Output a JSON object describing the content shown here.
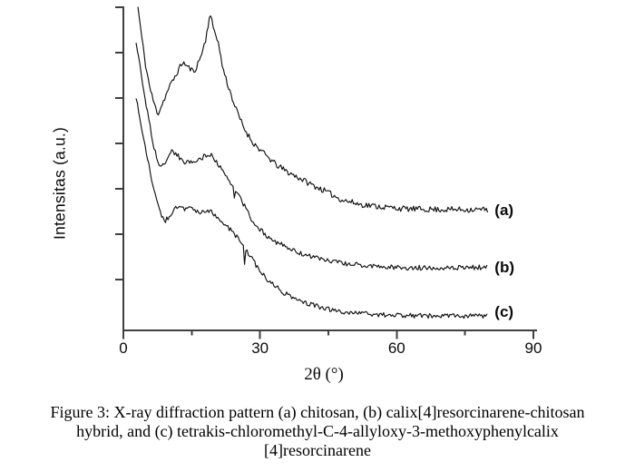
{
  "figure": {
    "y_axis_label": "Intensitas (a.u.)",
    "x_axis_label": "2θ (°)",
    "caption_lines": [
      "Figure 3: X-ray diffraction pattern (a) chitosan, (b) calix[4]resorcinarene-chitosan",
      "hybrid, and (c) tetrakis-chloromethyl-C-4-allyloxy-3-methoxyphenylcalix",
      "[4]resorcinarene"
    ]
  },
  "chart_data": {
    "type": "line",
    "title": "",
    "xlabel": "2θ (°)",
    "ylabel": "Intensitas (a.u.)",
    "x_axis": {
      "range": [
        0,
        90
      ],
      "major_ticks": [
        0,
        30,
        60,
        90
      ],
      "minor_ticks": [
        15,
        45,
        75
      ],
      "tick_labels": [
        "0",
        "30",
        "60",
        "90"
      ]
    },
    "y_axis": {
      "units": "arbitrary units (a.u.)",
      "tick_count": 7,
      "tick_labels": []
    },
    "curve_color": "#101010",
    "axis_color": "#3f3f3f",
    "series": [
      {
        "key": "a",
        "label": "(a)",
        "name": "chitosan",
        "label_deg": 81.5,
        "label_u": 37.1,
        "noise_u": 0.9,
        "points": [
          [
            3.2,
            100
          ],
          [
            4,
            91
          ],
          [
            5,
            81
          ],
          [
            6,
            74
          ],
          [
            7,
            69
          ],
          [
            7.6,
            67
          ],
          [
            8.5,
            70
          ],
          [
            10,
            75
          ],
          [
            11.5,
            79
          ],
          [
            13,
            83
          ],
          [
            14.2,
            81.5
          ],
          [
            15.5,
            80
          ],
          [
            16.8,
            84
          ],
          [
            18,
            89.5
          ],
          [
            19,
            98
          ],
          [
            19.7,
            94
          ],
          [
            20.7,
            90
          ],
          [
            21.7,
            82
          ],
          [
            22.7,
            77
          ],
          [
            24.7,
            68.5
          ],
          [
            26.5,
            62.5
          ],
          [
            28.5,
            58
          ],
          [
            31,
            54.5
          ],
          [
            33.7,
            51.1
          ],
          [
            36.2,
            48.9
          ],
          [
            39,
            46.9
          ],
          [
            41.2,
            45.2
          ],
          [
            44,
            43.3
          ],
          [
            48,
            40.4
          ],
          [
            52,
            39
          ],
          [
            57,
            38.2
          ],
          [
            62,
            37.6
          ],
          [
            70,
            37.4
          ],
          [
            80,
            37.4
          ]
        ]
      },
      {
        "key": "b",
        "label": "(b)",
        "name": "calix[4]resorcinarene-chitosan hybrid",
        "label_deg": 81.5,
        "label_u": 19.4,
        "noise_u": 0.75,
        "spikes": [
          {
            "deg": 24.3,
            "u": 2.8
          }
        ],
        "points": [
          [
            2.8,
            89
          ],
          [
            3.5,
            83
          ],
          [
            4.5,
            74
          ],
          [
            5.5,
            66
          ],
          [
            6.5,
            58
          ],
          [
            7.5,
            52.5
          ],
          [
            8.3,
            50
          ],
          [
            9.5,
            53
          ],
          [
            10.7,
            55.6
          ],
          [
            12,
            54
          ],
          [
            13.5,
            51.8
          ],
          [
            15,
            52.3
          ],
          [
            16.5,
            52.8
          ],
          [
            18,
            54
          ],
          [
            19.3,
            54.3
          ],
          [
            20.5,
            52.3
          ],
          [
            22,
            48.5
          ],
          [
            24,
            44.7
          ],
          [
            26,
            40
          ],
          [
            28.5,
            33.5
          ],
          [
            31,
            29.8
          ],
          [
            34,
            27
          ],
          [
            38,
            24.2
          ],
          [
            43,
            22.2
          ],
          [
            48,
            20.8
          ],
          [
            54,
            19.9
          ],
          [
            62,
            19.4
          ],
          [
            72,
            19.4
          ],
          [
            80,
            19.5
          ]
        ]
      },
      {
        "key": "c",
        "label": "(c)",
        "name": "tetrakis-chloromethyl-C-4-allyloxy-3-methoxyphenylcalix[4]resorcinarene",
        "label_deg": 81.5,
        "label_u": 5.6,
        "noise_u": 0.75,
        "spikes": [
          {
            "deg": 26.7,
            "u": 4.5
          }
        ],
        "points": [
          [
            2.8,
            72
          ],
          [
            3.5,
            66.3
          ],
          [
            4.5,
            58.7
          ],
          [
            5.5,
            51.7
          ],
          [
            6.5,
            44.7
          ],
          [
            7.5,
            39
          ],
          [
            8.5,
            35
          ],
          [
            9.3,
            34
          ],
          [
            10.5,
            36.2
          ],
          [
            12,
            38.5
          ],
          [
            13.5,
            37.4
          ],
          [
            15,
            37.6
          ],
          [
            16.5,
            36.5
          ],
          [
            18,
            37.1
          ],
          [
            19.5,
            36.5
          ],
          [
            21,
            34.8
          ],
          [
            23,
            32
          ],
          [
            25,
            28.7
          ],
          [
            27,
            24.7
          ],
          [
            29.5,
            19.4
          ],
          [
            32,
            15.2
          ],
          [
            35,
            11.8
          ],
          [
            38,
            9.6
          ],
          [
            42,
            7.6
          ],
          [
            46,
            6.2
          ],
          [
            51,
            5.3
          ],
          [
            57,
            4.8
          ],
          [
            65,
            4.5
          ],
          [
            72,
            4.4
          ],
          [
            80,
            4.5
          ]
        ]
      }
    ]
  }
}
